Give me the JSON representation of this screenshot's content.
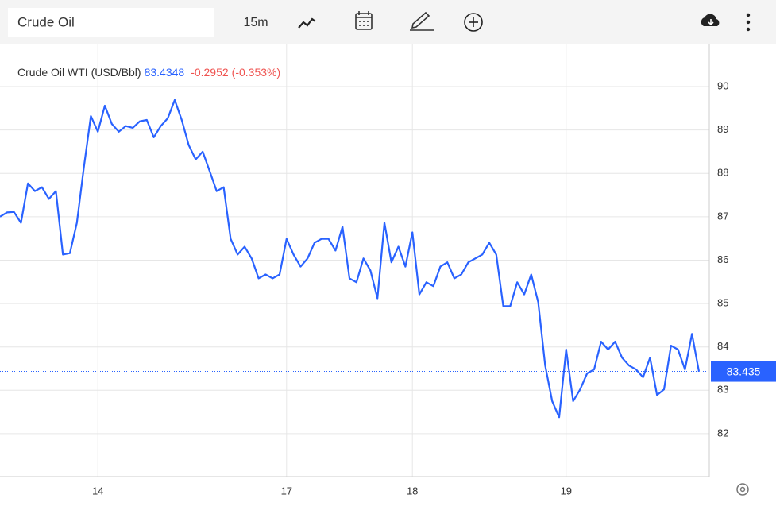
{
  "toolbar": {
    "symbol": "Crude Oil",
    "interval": "15m"
  },
  "chart_data": {
    "type": "line",
    "title": "Crude Oil WTI (USD/Bbl)",
    "last_price": 83.4348,
    "change": -0.2952,
    "change_percent": "(-0.353%)",
    "price_line": 83.435,
    "color": "#2962ff",
    "grid": true,
    "ylim": [
      81.01,
      90.97
    ],
    "yticks": [
      82,
      83,
      84,
      85,
      86,
      87,
      88,
      89,
      90
    ],
    "categories": [
      null,
      null,
      null,
      null,
      null,
      null,
      null,
      null,
      null,
      null,
      null,
      null,
      null,
      null,
      "14",
      null,
      null,
      null,
      null,
      null,
      null,
      null,
      null,
      null,
      null,
      null,
      null,
      null,
      null,
      null,
      null,
      null,
      null,
      null,
      null,
      null,
      null,
      null,
      null,
      null,
      null,
      "17",
      null,
      null,
      null,
      null,
      null,
      null,
      null,
      null,
      null,
      null,
      null,
      null,
      null,
      null,
      null,
      null,
      null,
      "18",
      null,
      null,
      null,
      null,
      null,
      null,
      null,
      null,
      null,
      null,
      null,
      null,
      null,
      null,
      null,
      null,
      null,
      null,
      null,
      null,
      null,
      "19",
      null,
      null,
      null,
      null,
      null,
      null,
      null,
      null,
      null,
      null,
      null,
      null,
      null,
      null,
      null,
      null,
      null,
      null,
      null
    ],
    "values": [
      87.0,
      87.1,
      87.11,
      86.86,
      87.77,
      87.59,
      87.68,
      87.41,
      87.59,
      86.13,
      86.16,
      86.86,
      88.14,
      89.32,
      88.96,
      89.56,
      89.14,
      88.96,
      89.09,
      89.05,
      89.2,
      89.23,
      88.83,
      89.09,
      89.27,
      89.69,
      89.23,
      88.65,
      88.32,
      88.5,
      88.05,
      87.59,
      87.68,
      86.49,
      86.13,
      86.31,
      86.04,
      85.58,
      85.67,
      85.58,
      85.67,
      86.49,
      86.13,
      85.85,
      86.04,
      86.4,
      86.49,
      86.49,
      86.22,
      86.77,
      85.58,
      85.49,
      86.04,
      85.76,
      85.12,
      86.86,
      85.95,
      86.31,
      85.85,
      86.64,
      85.21,
      85.49,
      85.4,
      85.85,
      85.95,
      85.58,
      85.67,
      85.95,
      86.04,
      86.13,
      86.4,
      86.13,
      84.94,
      84.94,
      85.49,
      85.21,
      85.67,
      85.03,
      83.57,
      82.75,
      82.38,
      83.94,
      82.75,
      83.02,
      83.39,
      83.48,
      84.12,
      83.94,
      84.12,
      83.75,
      83.57,
      83.48,
      83.3,
      83.75,
      82.89,
      83.02,
      84.03,
      83.94,
      83.48,
      84.3,
      83.43
    ]
  }
}
